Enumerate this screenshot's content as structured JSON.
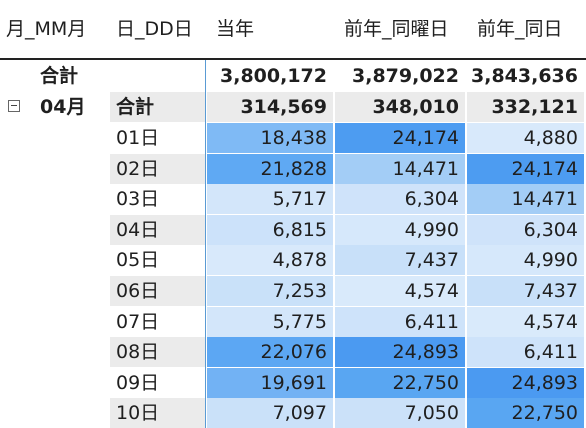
{
  "headers": {
    "month": "月_MM月",
    "day": "日_DD日",
    "current": "当年",
    "prev_same_weekday": "前年_同曜日",
    "prev_same_day": "前年_同日"
  },
  "grand_total": {
    "label": "合計",
    "current": "3,800,172",
    "prev_weekday": "3,879,022",
    "prev_day": "3,843,636"
  },
  "month_group": {
    "label": "04月",
    "subtotal_label": "合計",
    "current": "314,569",
    "prev_weekday": "348,010",
    "prev_day": "332,121"
  },
  "rows": [
    {
      "day": "01日",
      "current": "18,438",
      "prev_weekday": "24,174",
      "prev_day": "4,880",
      "colors": [
        "#7fbaf5",
        "#4d9cf1",
        "#d8e9fb"
      ]
    },
    {
      "day": "02日",
      "current": "21,828",
      "prev_weekday": "14,471",
      "prev_day": "24,174",
      "colors": [
        "#5fa9f3",
        "#a3cdf6",
        "#4d9cf1"
      ]
    },
    {
      "day": "03日",
      "current": "5,717",
      "prev_weekday": "6,304",
      "prev_day": "14,471",
      "colors": [
        "#d3e6fa",
        "#cfe3fa",
        "#a3cdf6"
      ]
    },
    {
      "day": "04日",
      "current": "6,815",
      "prev_weekday": "4,990",
      "prev_day": "6,304",
      "colors": [
        "#cce2fa",
        "#d6e8fb",
        "#cfe3fa"
      ]
    },
    {
      "day": "05日",
      "current": "4,878",
      "prev_weekday": "7,437",
      "prev_day": "4,990",
      "colors": [
        "#d8e9fb",
        "#c8e0f9",
        "#d6e8fb"
      ]
    },
    {
      "day": "06日",
      "current": "7,253",
      "prev_weekday": "4,574",
      "prev_day": "7,437",
      "colors": [
        "#c9e1f9",
        "#d9eafb",
        "#c8e0f9"
      ]
    },
    {
      "day": "07日",
      "current": "5,775",
      "prev_weekday": "6,411",
      "prev_day": "4,574",
      "colors": [
        "#d3e6fa",
        "#cee3fa",
        "#d9eafb"
      ]
    },
    {
      "day": "08日",
      "current": "22,076",
      "prev_weekday": "24,893",
      "prev_day": "6,411",
      "colors": [
        "#5ca7f3",
        "#4b9af1",
        "#cee3fa"
      ]
    },
    {
      "day": "09日",
      "current": "19,691",
      "prev_weekday": "22,750",
      "prev_day": "24,893",
      "colors": [
        "#72b2f4",
        "#59a6f2",
        "#4b9af1"
      ]
    },
    {
      "day": "10日",
      "current": "7,097",
      "prev_weekday": "7,050",
      "prev_day": "22,750",
      "colors": [
        "#cae1f9",
        "#cbe1f9",
        "#59a6f2"
      ]
    }
  ]
}
